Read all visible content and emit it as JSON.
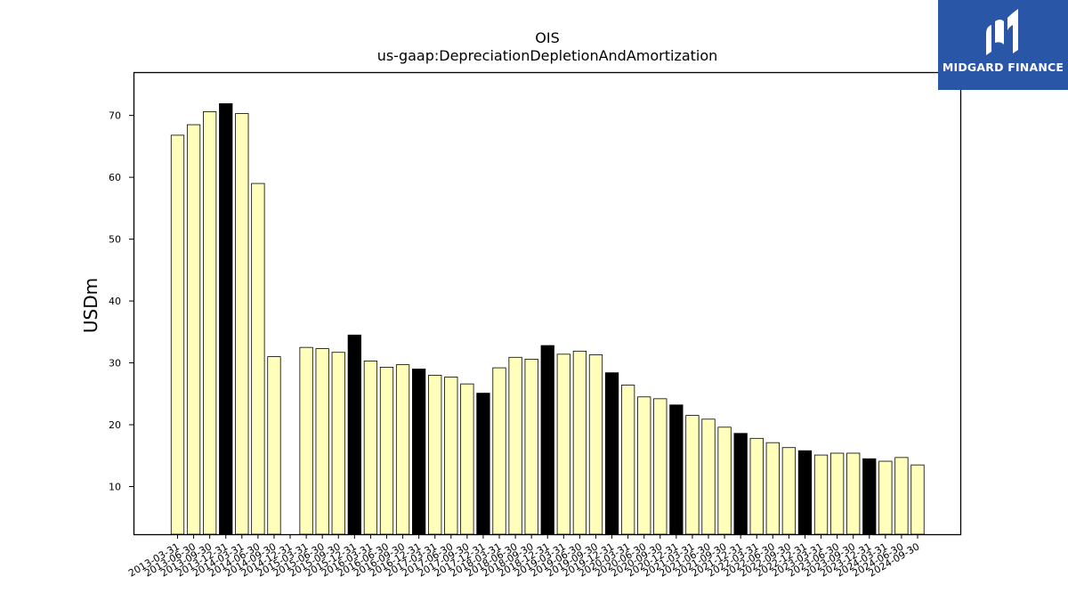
{
  "chart_data": {
    "type": "bar",
    "title": "OIS",
    "subtitle": "us-gaap:DepreciationDepletionAndAmortization",
    "ylabel": "USDm",
    "xlabel": "",
    "ylim": [
      2.3,
      77
    ],
    "yticks": [
      10,
      20,
      30,
      40,
      50,
      60,
      70
    ],
    "categories": [
      "2013-03-31",
      "2013-06-30",
      "2013-09-30",
      "2013-12-31",
      "2014-03-31",
      "2014-06-30",
      "2014-09-30",
      "2014-12-31",
      "2015-03-31",
      "2015-06-30",
      "2015-09-30",
      "2015-12-31",
      "2016-03-31",
      "2016-06-30",
      "2016-09-30",
      "2016-12-31",
      "2017-03-31",
      "2017-06-30",
      "2017-09-30",
      "2017-12-31",
      "2018-03-31",
      "2018-06-30",
      "2018-09-30",
      "2018-12-31",
      "2019-03-31",
      "2019-06-30",
      "2019-09-30",
      "2019-12-31",
      "2020-03-31",
      "2020-06-30",
      "2020-09-30",
      "2020-12-31",
      "2021-03-31",
      "2021-06-30",
      "2021-09-30",
      "2021-12-31",
      "2022-03-31",
      "2022-06-30",
      "2022-09-30",
      "2022-12-31",
      "2023-03-31",
      "2023-06-30",
      "2023-09-30",
      "2023-12-31",
      "2024-03-31",
      "2024-06-30",
      "2024-09-30"
    ],
    "values": [
      66.8,
      68.5,
      70.6,
      71.9,
      70.3,
      59.0,
      31.0,
      null,
      32.5,
      32.3,
      31.7,
      34.5,
      30.3,
      29.3,
      29.7,
      29.0,
      28.0,
      27.7,
      26.6,
      25.1,
      29.2,
      30.9,
      30.6,
      32.8,
      31.4,
      31.9,
      31.3,
      28.4,
      26.4,
      24.5,
      24.2,
      23.2,
      21.5,
      20.9,
      19.6,
      18.6,
      17.8,
      17.1,
      16.3,
      15.8,
      15.1,
      15.4,
      15.4,
      14.5,
      14.1,
      14.7,
      13.5
    ],
    "bar_colors": {
      "quarter": "#ffffbb",
      "year_end": "#000000",
      "edge": "#000000"
    },
    "grid": false,
    "legend": "none"
  },
  "logo": {
    "text": "MIDGARD FINANCE",
    "background": "#2a56a8"
  }
}
